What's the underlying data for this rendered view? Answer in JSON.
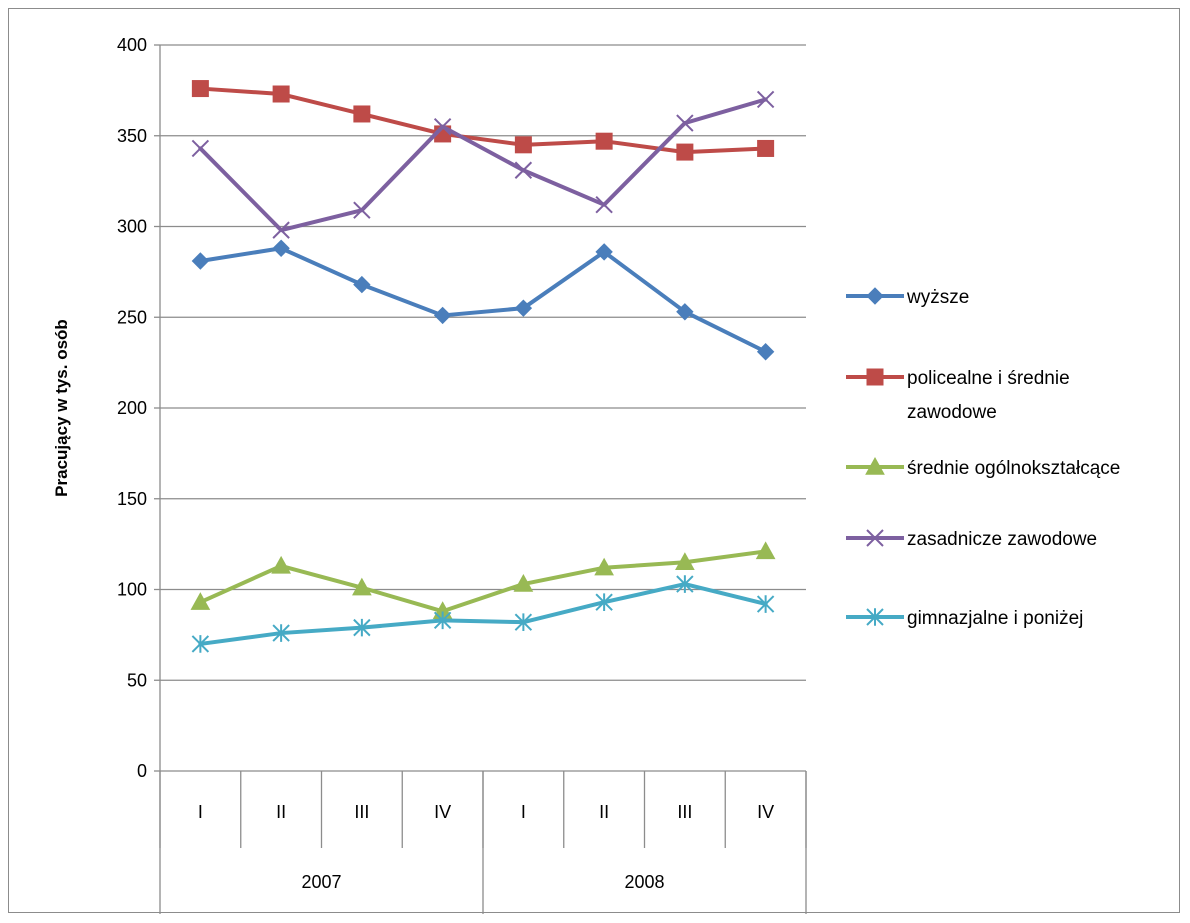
{
  "chart_data": {
    "type": "line",
    "title": "",
    "xlabel": "",
    "ylabel": "Pracujący w tys. osób",
    "ylim": [
      0,
      400
    ],
    "yticks": [
      0,
      50,
      100,
      150,
      200,
      250,
      300,
      350,
      400
    ],
    "grid": true,
    "legend_position": "right",
    "groups": [
      {
        "label": "2007",
        "categories": [
          "I",
          "II",
          "III",
          "IV"
        ]
      },
      {
        "label": "2008",
        "categories": [
          "I",
          "II",
          "III",
          "IV"
        ]
      }
    ],
    "series": [
      {
        "name": "wyższe",
        "color": "#4a7ebb",
        "marker": "diamond",
        "values": [
          281,
          288,
          268,
          251,
          255,
          286,
          253,
          231
        ]
      },
      {
        "name": "policealne i średnie zawodowe",
        "name_lines": [
          "policealne i średnie",
          "zawodowe"
        ],
        "color": "#be4b48",
        "marker": "square",
        "values": [
          376,
          373,
          362,
          351,
          345,
          347,
          341,
          343
        ]
      },
      {
        "name": "średnie ogólnokształcące",
        "color": "#98b954",
        "marker": "triangle",
        "values": [
          93,
          113,
          101,
          88,
          103,
          112,
          115,
          121
        ]
      },
      {
        "name": "zasadnicze zawodowe",
        "color": "#7d60a0",
        "marker": "x",
        "values": [
          343,
          298,
          309,
          355,
          331,
          312,
          357,
          370
        ]
      },
      {
        "name": "gimnazjalne i poniżej",
        "color": "#46aac5",
        "marker": "star",
        "values": [
          70,
          76,
          79,
          83,
          82,
          93,
          103,
          92
        ]
      }
    ]
  }
}
